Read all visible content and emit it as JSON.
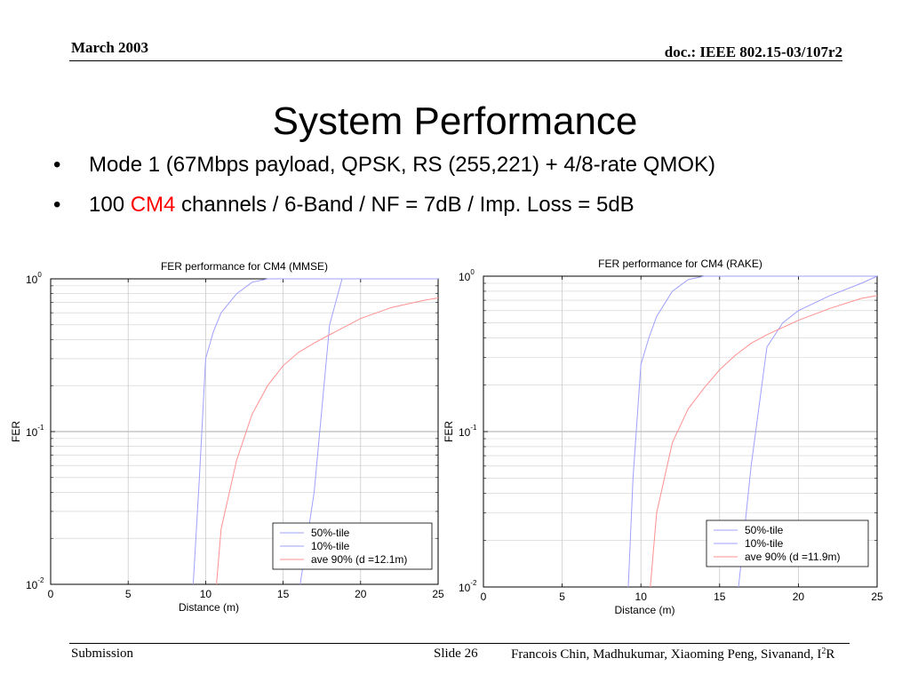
{
  "header": {
    "date": "March 2003",
    "doc_id": "doc.: IEEE 802.15-03/107r2"
  },
  "slide": {
    "title": "System Performance",
    "bullets": [
      {
        "marker": "•",
        "text": "Mode 1 (67Mbps payload, QPSK, RS (255,221) + 4/8-rate QMOK)"
      },
      {
        "marker": "•",
        "prefix": "100 ",
        "highlight": "CM4",
        "suffix": " channels / 6-Band / NF = 7dB / Imp. Loss = 5dB"
      }
    ],
    "highlight_color": "#ff0000"
  },
  "chart_data": [
    {
      "type": "line",
      "title": "FER performance for CM4 (MMSE)",
      "xlabel": "Distance (m)",
      "ylabel": "FER",
      "xlim": [
        0,
        25
      ],
      "ylim": [
        0.01,
        1
      ],
      "yscale": "log",
      "xticks": [
        "0",
        "5",
        "10",
        "15",
        "20",
        "25"
      ],
      "yticks": [
        {
          "base": "10",
          "exp": "0"
        },
        {
          "base": "10",
          "exp": "-1"
        },
        {
          "base": "10",
          "exp": "-2"
        }
      ],
      "grid": true,
      "legend_position": "bottom-right",
      "series": [
        {
          "name": "50%-tile",
          "color": "#a0a0ff",
          "x": [
            16.1,
            17.0,
            18.0,
            18.8,
            20.0,
            25.0
          ],
          "y": [
            0.01,
            0.04,
            0.5,
            1.0,
            1.0,
            1.0
          ]
        },
        {
          "name": "10%-tile",
          "color": "#a0a0ff",
          "x": [
            9.2,
            9.6,
            10.0,
            10.5,
            11.0,
            12.0,
            13.0,
            14.0,
            15.0,
            25.0
          ],
          "y": [
            0.01,
            0.05,
            0.3,
            0.45,
            0.6,
            0.8,
            0.95,
            1.0,
            1.0,
            1.0
          ]
        },
        {
          "name": "ave 90% (d =12.1m)",
          "color": "#ff9090",
          "x": [
            10.7,
            11.0,
            12.0,
            13.0,
            14.0,
            15.0,
            16.0,
            17.0,
            18.0,
            20.0,
            22.0,
            24.0,
            25.0
          ],
          "y": [
            0.01,
            0.023,
            0.065,
            0.13,
            0.2,
            0.27,
            0.33,
            0.38,
            0.43,
            0.55,
            0.65,
            0.72,
            0.75
          ]
        }
      ]
    },
    {
      "type": "line",
      "title": "FER performance for CM4 (RAKE)",
      "xlabel": "Distance (m)",
      "ylabel": "FER",
      "xlim": [
        0,
        25
      ],
      "ylim": [
        0.01,
        1
      ],
      "yscale": "log",
      "xticks": [
        "0",
        "5",
        "10",
        "15",
        "20",
        "25"
      ],
      "yticks": [
        {
          "base": "10",
          "exp": "0"
        },
        {
          "base": "10",
          "exp": "-1"
        },
        {
          "base": "10",
          "exp": "-2"
        }
      ],
      "grid": true,
      "legend_position": "bottom-right",
      "series": [
        {
          "name": "50%-tile",
          "color": "#a0a0ff",
          "x": [
            16.2,
            17.0,
            18.0,
            19.0,
            20.0,
            22.0,
            24.0,
            25.0
          ],
          "y": [
            0.01,
            0.06,
            0.35,
            0.5,
            0.6,
            0.75,
            0.9,
            1.0
          ]
        },
        {
          "name": "10%-tile",
          "color": "#a0a0ff",
          "x": [
            9.2,
            9.5,
            10.0,
            10.5,
            11.0,
            12.0,
            13.0,
            14.0,
            15.0,
            25.0
          ],
          "y": [
            0.01,
            0.05,
            0.27,
            0.4,
            0.55,
            0.8,
            0.95,
            1.0,
            1.0,
            1.0
          ]
        },
        {
          "name": "ave 90% (d =11.9m)",
          "color": "#ff9090",
          "x": [
            10.6,
            11.0,
            12.0,
            13.0,
            14.0,
            15.0,
            16.0,
            17.0,
            18.0,
            20.0,
            22.0,
            24.0,
            25.0
          ],
          "y": [
            0.01,
            0.03,
            0.085,
            0.14,
            0.19,
            0.25,
            0.31,
            0.37,
            0.42,
            0.52,
            0.62,
            0.72,
            0.75
          ]
        }
      ]
    }
  ],
  "footer": {
    "left": "Submission",
    "slide_label": "Slide 26",
    "authors_main": "Francois Chin, Madhukumar, Xiaoming Peng, Sivanand, I",
    "authors_sup": "2",
    "authors_end": "R"
  }
}
